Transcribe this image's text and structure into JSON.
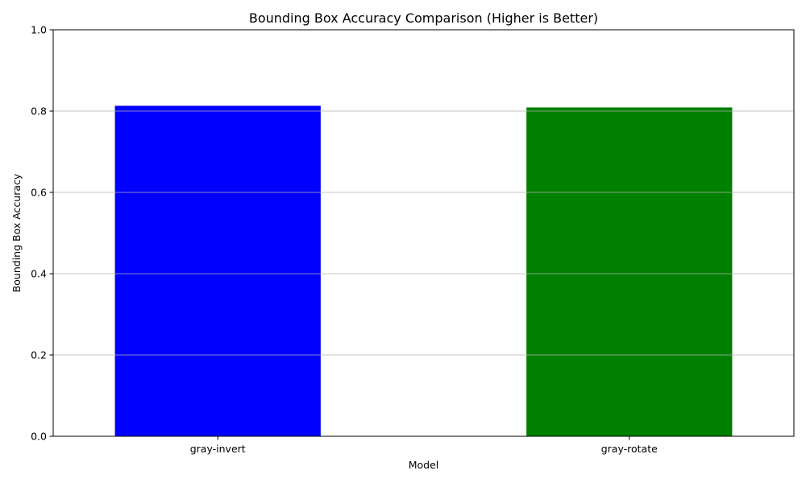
{
  "chart_data": {
    "type": "bar",
    "title": "Bounding Box Accuracy Comparison (Higher is Better)",
    "xlabel": "Model",
    "ylabel": "Bounding Box Accuracy",
    "categories": [
      "gray-invert",
      "gray-rotate"
    ],
    "values": [
      0.813,
      0.809
    ],
    "colors": [
      "#0000ff",
      "#008000"
    ],
    "ylim": [
      0,
      1
    ],
    "yticks": [
      0.0,
      0.2,
      0.4,
      0.6,
      0.8,
      1.0
    ],
    "ytick_labels": [
      "0.0",
      "0.2",
      "0.4",
      "0.6",
      "0.8",
      "1.0"
    ],
    "grid": "y-axis",
    "legend": "none"
  }
}
